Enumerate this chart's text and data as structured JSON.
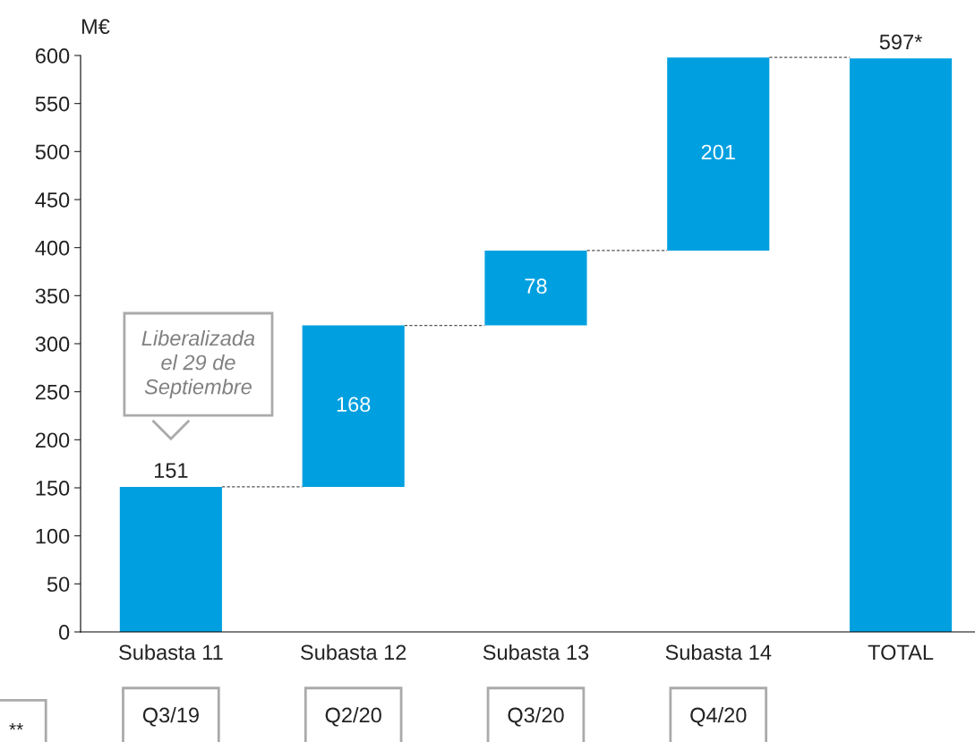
{
  "chart_data": {
    "type": "bar",
    "ylabel": "M€",
    "categories": [
      "Subasta 11",
      "Subasta 12",
      "Subasta 13",
      "Subasta 14",
      "TOTAL"
    ],
    "values": [
      151,
      168,
      78,
      201,
      597
    ],
    "base": [
      0,
      151,
      319,
      397,
      0
    ],
    "value_labels": [
      "151",
      "168",
      "78",
      "201",
      "597*"
    ],
    "color": "#00a0e0",
    "ylim": [
      0,
      600
    ],
    "yticks": [
      0,
      50,
      100,
      150,
      200,
      250,
      300,
      350,
      400,
      450,
      500,
      550,
      600
    ],
    "grid": false,
    "annotations": [
      "Liberalizada\nel 29 de\nSeptiembre",
      "**",
      "Q3/19",
      "Q2/20",
      "Q3/20",
      "Q4/20"
    ]
  }
}
